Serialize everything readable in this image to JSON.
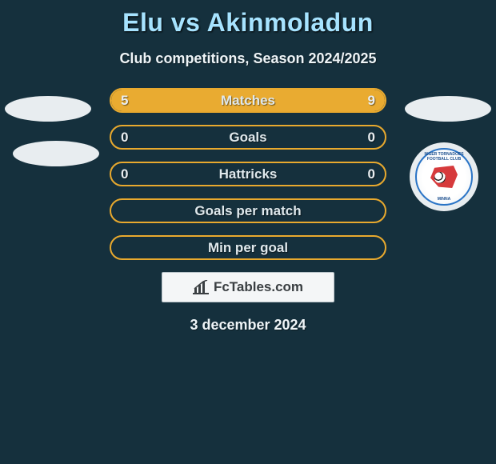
{
  "background_color": "#15303d",
  "title": {
    "text": "Elu vs Akinmoladun",
    "color": "#a6e3ff",
    "fontsize": 32
  },
  "subtitle": {
    "text": "Club competitions, Season 2024/2025",
    "color": "#eef4f7",
    "fontsize": 18
  },
  "stats": {
    "border_color": "#e8a92e",
    "fill_color": "#e9ab31",
    "label_color": "#dfe8ec",
    "value_color": "#e9eef1",
    "rows": [
      {
        "label": "Matches",
        "left": "5",
        "right": "9",
        "left_pct": 36,
        "right_pct": 64
      },
      {
        "label": "Goals",
        "left": "0",
        "right": "0",
        "left_pct": 0,
        "right_pct": 0
      },
      {
        "label": "Hattricks",
        "left": "0",
        "right": "0",
        "left_pct": 0,
        "right_pct": 0
      },
      {
        "label": "Goals per match",
        "left": "",
        "right": "",
        "left_pct": 0,
        "right_pct": 0
      },
      {
        "label": "Min per goal",
        "left": "",
        "right": "",
        "left_pct": 0,
        "right_pct": 0
      }
    ]
  },
  "brand": {
    "text": "FcTables.com",
    "icon_color": "#3a3f42",
    "box_bg": "#f4f6f7",
    "box_border": "#b9c4c9"
  },
  "date": {
    "text": "3 december 2024",
    "color": "#eef4f7",
    "fontsize": 18
  },
  "placeholder_ellipse_color": "#e8edf0",
  "club_badge": {
    "ring_bg": "#e8edf0",
    "border_color": "#2a74c6",
    "text_color": "#1c4f8e",
    "top_text": "NIGER TORNADOES FOOTBALL CLUB",
    "bottom_text": "MINNA",
    "shape_color": "#d63a3c"
  }
}
